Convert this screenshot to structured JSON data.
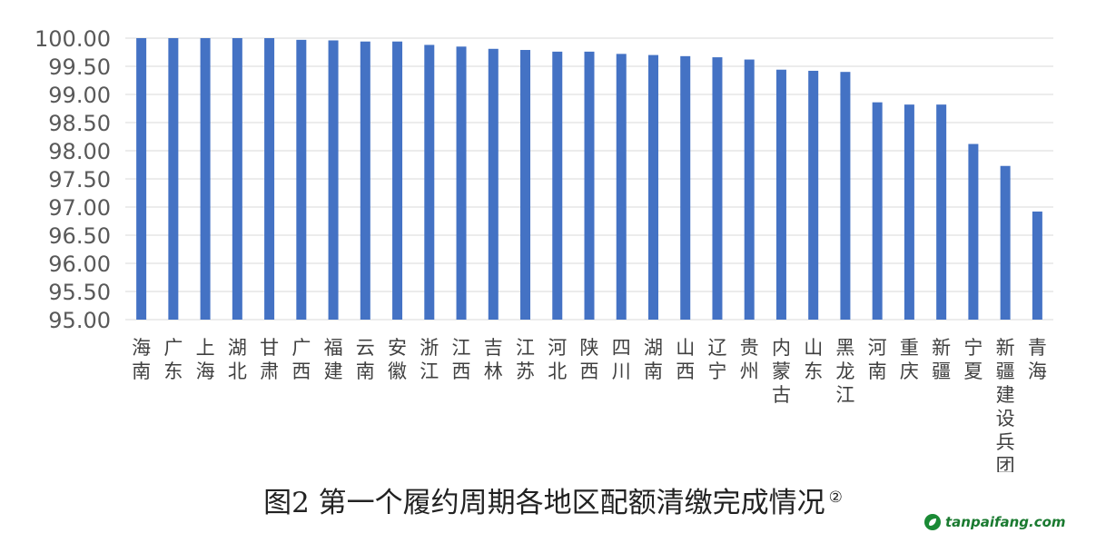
{
  "chart_data": {
    "type": "bar",
    "categories": [
      "海南",
      "广东",
      "上海",
      "湖北",
      "甘肃",
      "广西",
      "福建",
      "云南",
      "安徽",
      "浙江",
      "江西",
      "吉林",
      "江苏",
      "河北",
      "陕西",
      "四川",
      "湖南",
      "山西",
      "辽宁",
      "贵州",
      "内蒙古",
      "山东",
      "黑龙江",
      "河南",
      "重庆",
      "新疆",
      "宁夏",
      "新疆建设兵团",
      "青海"
    ],
    "values": [
      100.0,
      100.0,
      100.0,
      100.0,
      100.0,
      99.97,
      99.96,
      99.94,
      99.94,
      99.88,
      99.85,
      99.81,
      99.79,
      99.76,
      99.76,
      99.72,
      99.7,
      99.68,
      99.66,
      99.62,
      99.44,
      99.42,
      99.4,
      98.86,
      98.82,
      98.82,
      98.12,
      97.73,
      96.92
    ],
    "ylim": [
      95,
      100
    ],
    "yticks": [
      "95.00",
      "95.50",
      "96.00",
      "96.50",
      "97.00",
      "97.50",
      "98.00",
      "98.50",
      "99.00",
      "99.50",
      "100.00"
    ],
    "grid": true,
    "bar_color": "#4472c4",
    "title": "图2 第一个履约周期各地区配额清缴完成情况",
    "title_note": "②"
  },
  "watermark": {
    "text": "tanpaifang.com",
    "icon": "tanpaifang-logo-icon"
  }
}
